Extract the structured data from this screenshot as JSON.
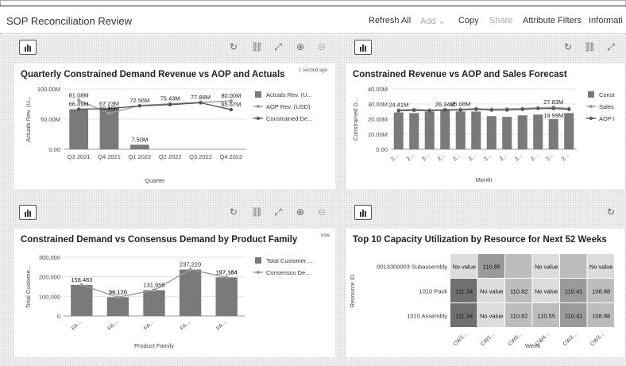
{
  "app": {
    "title": "SOP Reconciliation Review"
  },
  "toolbar": {
    "refresh": "Refresh All",
    "add": "Add",
    "copy": "Copy",
    "share": "Share",
    "attribute_filters": "Attribute Filters",
    "information": "Informati"
  },
  "tile_icons": [
    "refresh-icon",
    "link-icon",
    "expand-icon",
    "zoom-in-icon",
    "zoom-out-icon"
  ],
  "chart_data": [
    {
      "type": "bar",
      "title": "Quarterly Constrained Demand Revenue vs AOP and Actuals",
      "note": "1 second ago",
      "categories": [
        "Q3 2021",
        "Q4 2021",
        "Q1 2022",
        "Q2 2022",
        "Q3 2022",
        "Q4 2022"
      ],
      "series": [
        {
          "name": "Actuals Rev. (U...",
          "kind": "bar",
          "values": [
            66.49,
            67.23,
            7.5,
            null,
            null,
            null
          ],
          "labels": [
            "66.49M",
            "67.23M",
            "7.50M",
            "",
            "",
            ""
          ]
        },
        {
          "name": "AOP Rev. (USD)",
          "kind": "line",
          "values": [
            81.08,
            59.49,
            72.56,
            75.43,
            77.88,
            80.0
          ],
          "labels": [
            "81.08M",
            "59.49M",
            "72.56M",
            "75.43M",
            "77.88M",
            "80.00M"
          ]
        },
        {
          "name": "Constrained De...",
          "kind": "line",
          "values": [
            66.49,
            67.23,
            72.0,
            74.0,
            77.0,
            65.67
          ],
          "labels": [
            "",
            "",
            "",
            "",
            "",
            "65.67M"
          ]
        }
      ],
      "yticks": [
        "100.00M",
        "50.00M",
        "0.00"
      ],
      "ylim": [
        0,
        100
      ],
      "xlabel": "Quarter",
      "ylabel": "Actuals Rev. (U..."
    },
    {
      "type": "bar",
      "title": "Constrained Revenue vs AOP and Sales Forecast",
      "categories": [
        "2...",
        "2...",
        "2...",
        "2...",
        "2...",
        "2...",
        "2...",
        "2...",
        "2...",
        "2...",
        "2...",
        "2..."
      ],
      "series": [
        {
          "name": "Const",
          "kind": "bar",
          "values": [
            24.41,
            24.0,
            25.0,
            26.0,
            25.08,
            25.0,
            22.0,
            21.5,
            22.5,
            23.0,
            19.99,
            24.0
          ]
        },
        {
          "name": "Sales",
          "kind": "line",
          "values": [
            26.0,
            26.5,
            26.0,
            26.34,
            26.5,
            27.0,
            26.5,
            26.8,
            27.0,
            27.5,
            27.83,
            27.0
          ]
        },
        {
          "name": "AOP I",
          "kind": "line",
          "values": [
            25.5,
            25.8,
            25.5,
            26.0,
            26.0,
            26.5,
            26.0,
            26.0,
            26.5,
            27.0,
            27.0,
            26.5
          ]
        }
      ],
      "point_labels": [
        {
          "index": 0,
          "text": "24.41M"
        },
        {
          "index": 3,
          "text": "26.34M"
        },
        {
          "index": 4,
          "text": "25.08M"
        },
        {
          "index": 10,
          "text": "27.83M"
        },
        {
          "index": 10,
          "text": "19.99M"
        }
      ],
      "yticks": [
        "40.00M",
        "30.00M",
        "20.00M",
        "10.00M",
        "0.00"
      ],
      "ylim": [
        0,
        40
      ],
      "xlabel": "Month",
      "ylabel": "Constrained D..."
    },
    {
      "type": "bar",
      "title": "Constrained Demand vs Consensus Demand by Product Family",
      "note": "now",
      "categories": [
        "FA...",
        "FA...",
        "FA...",
        "FA...",
        "FA..."
      ],
      "series": [
        {
          "name": "Total Customer ...",
          "kind": "bar",
          "values": [
            158483,
            96120,
            131955,
            237220,
            197164
          ],
          "labels": [
            "158,483",
            "96,120",
            "131,955",
            "237,220",
            "197,164"
          ]
        },
        {
          "name": "Consensus De...",
          "kind": "line",
          "values": [
            158483,
            96120,
            131955,
            237220,
            197184
          ],
          "labels": [
            "",
            "96,120",
            "",
            "",
            "197,184"
          ]
        }
      ],
      "yticks": [
        "300,000",
        "200,000",
        "100,000",
        "0"
      ],
      "ylim": [
        0,
        300000
      ],
      "xlabel": "Product Family",
      "ylabel": "Total Custome..."
    },
    {
      "type": "heatmap",
      "title": "Top 10 Capacity Utilization by Resource for Next 52 Weeks",
      "rows": [
        "0013300003 Subassembly",
        "1010 Pack",
        "1010 Assembly"
      ],
      "columns": [
        "CW3...",
        "CW1...",
        "CW0...",
        "CW4...",
        "CW2...",
        "CW3..."
      ],
      "cells": [
        [
          "No value",
          "110.85",
          "",
          "No value",
          "",
          "No value"
        ],
        [
          "111.34",
          "No value",
          "110.82",
          "No value",
          "110.41",
          "108.88"
        ],
        [
          "111.34",
          "No value",
          "110.82",
          "110.55",
          "110.41",
          "108.88"
        ]
      ],
      "colors": {
        "very_high": "#707070",
        "high": "#9a9a9a",
        "medium": "#bdbdbd",
        "low": "#dcdcdc",
        "empty": "#e6e6e6"
      },
      "cell_levels": [
        [
          "low",
          "high",
          "medium",
          "low",
          "medium",
          "low"
        ],
        [
          "very_high",
          "low",
          "medium",
          "low",
          "high",
          "medium"
        ],
        [
          "very_high",
          "low",
          "medium",
          "medium",
          "high",
          "medium"
        ]
      ],
      "xlabel": "Week",
      "ylabel": "Resource ID"
    }
  ]
}
